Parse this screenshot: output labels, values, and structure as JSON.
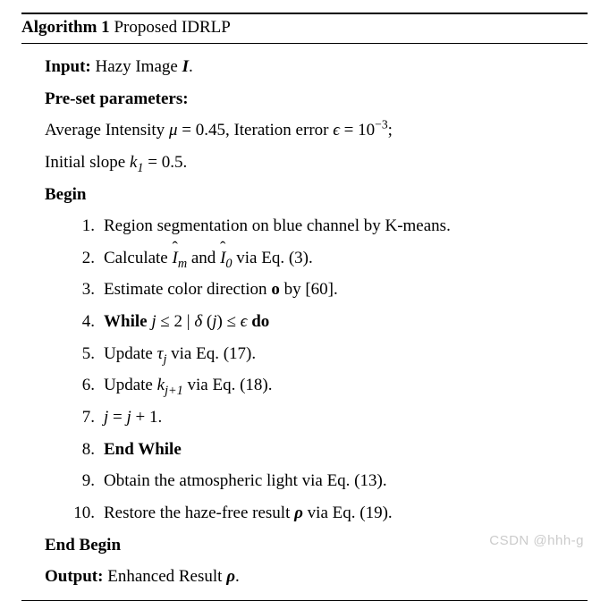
{
  "colors": {
    "background": "#ffffff",
    "text": "#000000",
    "rule": "#000000",
    "watermark": "rgba(140,140,140,0.45)"
  },
  "typography": {
    "font_family": "Times New Roman",
    "font_size_pt": 14,
    "watermark_font_family": "Arial",
    "watermark_font_size_pt": 11
  },
  "algorithm": {
    "caption_prefix": "Algorithm 1",
    "caption_title": "Proposed IDRLP",
    "input_label": "Input:",
    "input_text_pre": "Hazy Image ",
    "input_symbol": "I",
    "input_text_post": ".",
    "preset_label": "Pre-set parameters:",
    "mu": {
      "label_pre": "Average Intensity ",
      "symbol": "μ",
      "value": "0.45"
    },
    "epsilon": {
      "label_pre": ", Iteration error ",
      "symbol": "ϵ",
      "value_base": "10",
      "value_exp": "−3",
      "trail": ";"
    },
    "k1": {
      "label_pre": "Initial slope ",
      "symbol": "k",
      "sub": "1",
      "value": "0.5",
      "trail": "."
    },
    "begin": "Begin",
    "end_begin": "End Begin",
    "output_label": "Output:",
    "output_text_pre": "Enhanced Result ",
    "output_symbol": "ρ",
    "output_text_post": ".",
    "steps": [
      {
        "n": "1.",
        "html": "Region segmentation on blue channel by K-means."
      },
      {
        "n": "2.",
        "html": "Calculate <span class='ital hat'>I</span><sub>m</sub> and <span class='ital hat'>I</span><sub>0</sub> via Eq. (3)."
      },
      {
        "n": "3.",
        "html": "Estimate color direction <span class='bold'>o</span> by [60]."
      },
      {
        "n": "4.",
        "html": "<span class='bold'>While</span> <span class='ital'>j</span> ≤ 2 &#124; <span class='ital'>δ</span> (<span class='ital'>j</span>) ≤ <span class='ital'>ϵ</span> <span class='bold'>do</span>"
      },
      {
        "n": "5.",
        "html": "Update <span class='ital'>τ</span><sub>j</sub> via Eq. (17)."
      },
      {
        "n": "6.",
        "html": "Update <span class='ital'>k</span><sub>j+1</sub> via Eq. (18)."
      },
      {
        "n": "7.",
        "html": "<span class='ital'>j</span> = <span class='ital'>j</span> + 1."
      },
      {
        "n": "8.",
        "html": "<span class='bold'>End While</span>"
      },
      {
        "n": "9.",
        "html": "Obtain the atmospheric light via Eq. (13)."
      },
      {
        "n": "10.",
        "html": "Restore the haze-free result <span class='bolditalic'>ρ</span> via Eq. (19)."
      }
    ]
  },
  "watermark": "CSDN @hhh-g"
}
